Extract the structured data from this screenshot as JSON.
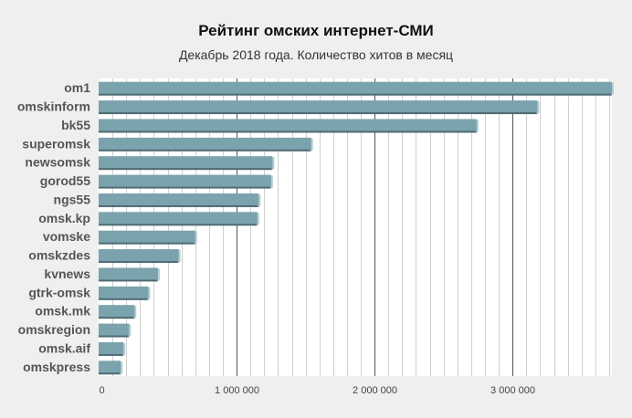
{
  "chart_data": {
    "type": "bar",
    "orientation": "horizontal",
    "title": "Рейтинг омских интернет-СМИ",
    "subtitle": "Декабрь 2018 года. Количество хитов в месяц",
    "xlabel": "",
    "ylabel": "",
    "categories": [
      "om1",
      "omskinform",
      "bk55",
      "superomsk",
      "newsomsk",
      "gorod55",
      "ngs55",
      "omsk.kp",
      "vomske",
      "omskzdes",
      "kvnews",
      "gtrk-omsk",
      "omsk.mk",
      "omskregion",
      "omsk.aif",
      "omskpress"
    ],
    "values": [
      3720000,
      3180000,
      2740000,
      1540000,
      1260000,
      1250000,
      1160000,
      1150000,
      700000,
      580000,
      430000,
      360000,
      260000,
      220000,
      180000,
      160000
    ],
    "xlim": [
      0,
      3720000
    ],
    "xticks": [
      0,
      1000000,
      2000000,
      3000000
    ],
    "xtick_labels": [
      "0",
      "1 000 000",
      "2 000 000",
      "3 000 000"
    ],
    "grid": true,
    "legend": "none",
    "colors": {
      "bar": "#7ba3ad",
      "bar_shadow": "#4e6a72",
      "bar_side": "#b3cdd3",
      "major_grid": "#555555",
      "minor_grid": "#cfcfcf",
      "plot_bg": "#ffffff"
    }
  }
}
